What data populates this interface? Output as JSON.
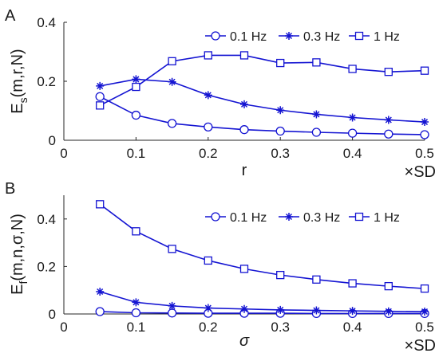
{
  "chart_data": [
    {
      "panel": "A",
      "type": "line",
      "ylabel": {
        "main": "E",
        "sub": "s",
        "rest": "(m,r,N)"
      },
      "xlabel": "r",
      "x_unit": "×SD",
      "xlim": [
        0,
        0.5
      ],
      "ylim": [
        0,
        0.4
      ],
      "xticks": [
        "0",
        "0.1",
        "0.2",
        "0.3",
        "0.4",
        "0.5"
      ],
      "yticks": [
        "0",
        "0.2",
        "0.4"
      ],
      "x": [
        0.05,
        0.1,
        0.15,
        0.2,
        0.25,
        0.3,
        0.35,
        0.4,
        0.45,
        0.5
      ],
      "series": [
        {
          "name": "0.1 Hz",
          "marker": "circle",
          "values": [
            0.148,
            0.085,
            0.057,
            0.045,
            0.036,
            0.031,
            0.027,
            0.024,
            0.021,
            0.019
          ]
        },
        {
          "name": "0.3 Hz",
          "marker": "star",
          "values": [
            0.184,
            0.207,
            0.198,
            0.153,
            0.122,
            0.102,
            0.088,
            0.077,
            0.069,
            0.062
          ]
        },
        {
          "name": "1 Hz",
          "marker": "square",
          "values": [
            0.118,
            0.181,
            0.268,
            0.288,
            0.288,
            0.262,
            0.264,
            0.242,
            0.232,
            0.236
          ]
        }
      ],
      "legend": "top-right",
      "color": "#1414d2"
    },
    {
      "panel": "B",
      "type": "line",
      "ylabel": {
        "main": "E",
        "sub": "f",
        "rest": "(m,n,σ,N)"
      },
      "xlabel": "σ",
      "x_unit": "×SD",
      "xlim": [
        0,
        0.5
      ],
      "ylim": [
        0,
        0.5
      ],
      "xticks": [
        "0",
        "0.1",
        "0.2",
        "0.3",
        "0.4",
        "0.5"
      ],
      "yticks": [
        "0",
        "0.2",
        "0.4"
      ],
      "x": [
        0.05,
        0.1,
        0.15,
        0.2,
        0.25,
        0.3,
        0.35,
        0.4,
        0.45,
        0.5
      ],
      "series": [
        {
          "name": "0.1 Hz",
          "marker": "circle",
          "values": [
            0.01,
            0.005,
            0.004,
            0.003,
            0.003,
            0.003,
            0.002,
            0.002,
            0.002,
            0.002
          ]
        },
        {
          "name": "0.3 Hz",
          "marker": "star",
          "values": [
            0.094,
            0.049,
            0.034,
            0.025,
            0.021,
            0.017,
            0.015,
            0.013,
            0.011,
            0.01
          ]
        },
        {
          "name": "1 Hz",
          "marker": "square",
          "values": [
            0.462,
            0.348,
            0.274,
            0.225,
            0.19,
            0.164,
            0.145,
            0.129,
            0.117,
            0.107
          ]
        }
      ],
      "legend": "top-right",
      "color": "#1414d2"
    }
  ]
}
